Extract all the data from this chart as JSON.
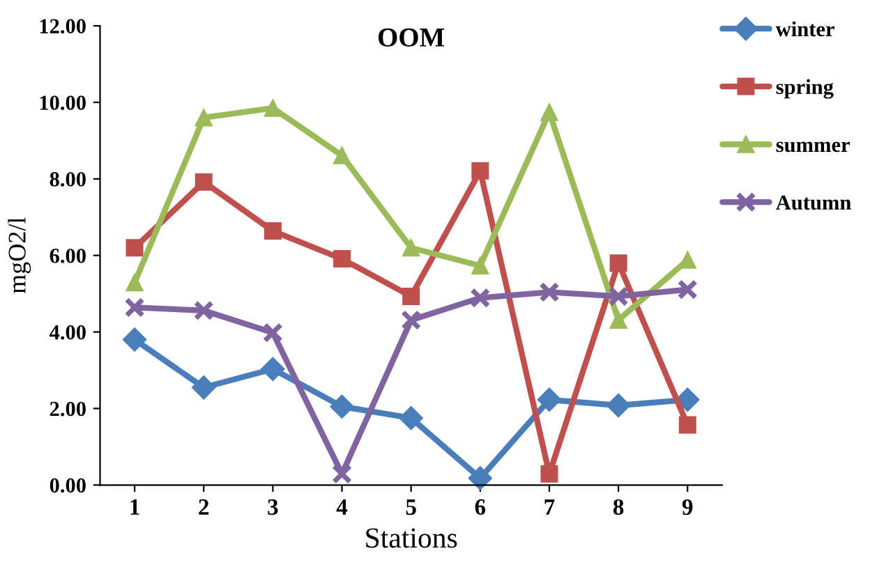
{
  "chart_data": {
    "type": "line",
    "title": "OOM",
    "xlabel": "Stations",
    "ylabel": "mgO2/l",
    "categories": [
      "1",
      "2",
      "3",
      "4",
      "5",
      "6",
      "7",
      "8",
      "9"
    ],
    "series": [
      {
        "name": "winter",
        "color": "#4a7ebb",
        "marker": "diamond",
        "values": [
          3.8,
          2.55,
          3.03,
          2.05,
          1.75,
          0.18,
          2.23,
          2.08,
          2.23
        ]
      },
      {
        "name": "spring",
        "color": "#c0504d",
        "marker": "square",
        "values": [
          6.2,
          7.92,
          6.64,
          5.91,
          4.93,
          8.21,
          0.29,
          5.8,
          1.57
        ]
      },
      {
        "name": "summer",
        "color": "#9bbb59",
        "marker": "triangle",
        "values": [
          5.29,
          9.6,
          9.85,
          8.61,
          6.2,
          5.73,
          9.74,
          4.31,
          5.88
        ]
      },
      {
        "name": "Autumn",
        "color": "#8064a2",
        "marker": "cross",
        "values": [
          4.64,
          4.56,
          3.98,
          0.29,
          4.31,
          4.89,
          5.04,
          4.93,
          5.11
        ]
      }
    ],
    "ylim": [
      0,
      12
    ],
    "yticks": [
      {
        "value": 0,
        "label": "0.00"
      },
      {
        "value": 2,
        "label": "2.00"
      },
      {
        "value": 4,
        "label": "4.00"
      },
      {
        "value": 6,
        "label": "6.00"
      },
      {
        "value": 8,
        "label": "8.00"
      },
      {
        "value": 10,
        "label": "10.00"
      },
      {
        "value": 12,
        "label": "12.00"
      }
    ],
    "grid": false,
    "legend": "right",
    "line_style": "solid"
  }
}
